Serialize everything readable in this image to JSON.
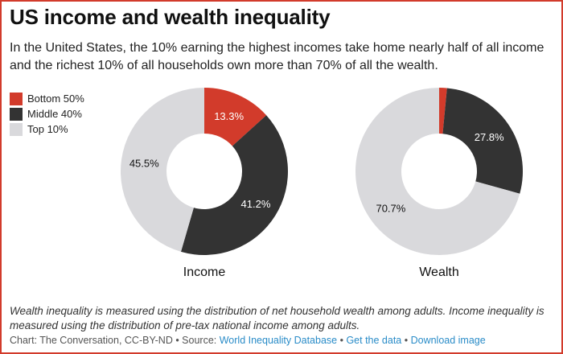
{
  "title": "US income and wealth inequality",
  "subtitle": "In the United States, the 10% earning the highest incomes take home nearly half of all income and the richest 10% of all households own more than 70% of all the wealth.",
  "colors": {
    "bottom50": "#d23b2b",
    "middle40": "#333333",
    "top10": "#d9d9dc",
    "border": "#d23b2b",
    "link": "#2a8cc8"
  },
  "legend": [
    {
      "label": "Bottom 50%",
      "color": "#d23b2b"
    },
    {
      "label": "Middle 40%",
      "color": "#333333"
    },
    {
      "label": "Top 10%",
      "color": "#d9d9dc"
    }
  ],
  "chart_data": [
    {
      "type": "pie",
      "variant": "donut",
      "title": "Income",
      "categories": [
        "Bottom 50%",
        "Middle 40%",
        "Top 10%"
      ],
      "values": [
        13.3,
        41.2,
        45.5
      ],
      "labels": [
        "13.3%",
        "41.2%",
        "45.5%"
      ]
    },
    {
      "type": "pie",
      "variant": "donut",
      "title": "Wealth",
      "categories": [
        "Bottom 50%",
        "Middle 40%",
        "Top 10%"
      ],
      "values": [
        1.5,
        27.8,
        70.7
      ],
      "labels": [
        "",
        "27.8%",
        "70.7%"
      ]
    }
  ],
  "note": "Wealth inequality is measured using the distribution of net household wealth among adults. Income inequality is measured using the distribution of pre-tax national income among adults.",
  "footer": {
    "prefix": "Chart: The Conversation, CC-BY-ND • Source: ",
    "source_link": "World Inequality Database",
    "separator": " • ",
    "get_data": "Get the data",
    "download": "Download image"
  }
}
